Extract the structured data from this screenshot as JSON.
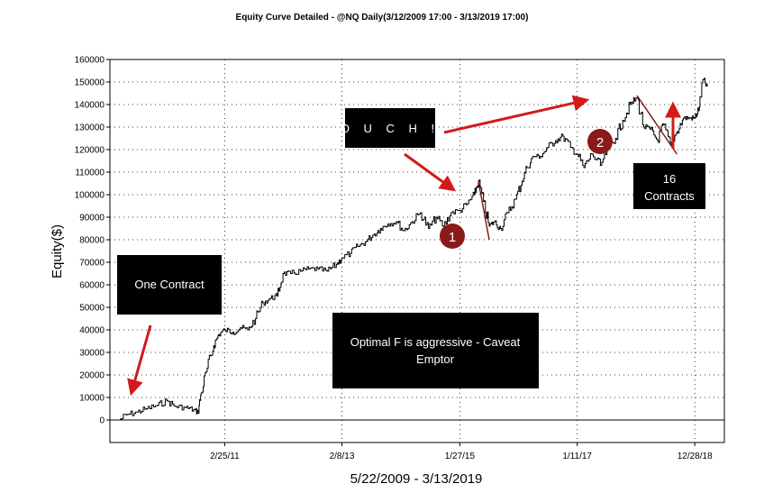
{
  "colors": {
    "background": "#ffffff",
    "equity_line": "#000000",
    "grid": "#000000",
    "arrow": "#d21a1a",
    "annotation_box": "#000000",
    "annotation_text": "#ffffff",
    "badge": "#8c1a1a",
    "drawdown_line": "#7a1010"
  },
  "chart_data": {
    "type": "line",
    "title": "Equity Curve Detailed - @NQ Daily(3/12/2009 17:00 - 3/13/2019 17:00)",
    "xlabel": "5/22/2009 - 3/13/2019",
    "ylabel": "Equity($)",
    "ylim": [
      -10000,
      160000
    ],
    "xlim": [
      "2009-05-22",
      "2019-03-13"
    ],
    "grid": true,
    "y_ticks": [
      "0",
      "10000",
      "20000",
      "30000",
      "40000",
      "50000",
      "60000",
      "70000",
      "80000",
      "90000",
      "100000",
      "110000",
      "120000",
      "130000",
      "140000",
      "150000",
      "160000"
    ],
    "x_ticks": [
      {
        "label": "2/25/11",
        "date": "2011-02-25"
      },
      {
        "label": "2/8/13",
        "date": "2013-02-08"
      },
      {
        "label": "1/27/15",
        "date": "2015-01-27"
      },
      {
        "label": "1/11/17",
        "date": "2017-01-11"
      },
      {
        "label": "12/28/18",
        "date": "2018-12-28"
      }
    ],
    "series": [
      {
        "points": [
          [
            "2009-05-22",
            0
          ],
          [
            "2009-07-15",
            2500
          ],
          [
            "2009-09-10",
            3500
          ],
          [
            "2009-11-05",
            5000
          ],
          [
            "2010-01-10",
            6500
          ],
          [
            "2010-03-10",
            8500
          ],
          [
            "2010-05-01",
            6000
          ],
          [
            "2010-07-01",
            5500
          ],
          [
            "2010-08-20",
            4500
          ],
          [
            "2010-09-15",
            3500
          ],
          [
            "2010-10-05",
            12000
          ],
          [
            "2010-11-10",
            23000
          ],
          [
            "2010-12-20",
            33000
          ],
          [
            "2011-01-20",
            38000
          ],
          [
            "2011-02-25",
            40000
          ],
          [
            "2011-04-15",
            39000
          ],
          [
            "2011-06-01",
            41000
          ],
          [
            "2011-07-15",
            40000
          ],
          [
            "2011-09-01",
            45000
          ],
          [
            "2011-10-15",
            52000
          ],
          [
            "2011-12-01",
            54000
          ],
          [
            "2012-01-10",
            55000
          ],
          [
            "2012-02-15",
            65000
          ],
          [
            "2012-04-01",
            65000
          ],
          [
            "2012-06-01",
            66000
          ],
          [
            "2012-07-20",
            67000
          ],
          [
            "2012-09-15",
            67000
          ],
          [
            "2012-11-10",
            66000
          ],
          [
            "2013-01-05",
            69000
          ],
          [
            "2013-02-08",
            72000
          ],
          [
            "2013-04-01",
            74000
          ],
          [
            "2013-05-15",
            77000
          ],
          [
            "2013-07-01",
            79000
          ],
          [
            "2013-08-15",
            82000
          ],
          [
            "2013-10-01",
            85000
          ],
          [
            "2013-11-15",
            87000
          ],
          [
            "2014-01-05",
            88000
          ],
          [
            "2014-02-20",
            84000
          ],
          [
            "2014-04-10",
            88000
          ],
          [
            "2014-06-01",
            92000
          ],
          [
            "2014-07-20",
            85000
          ],
          [
            "2014-09-05",
            90000
          ],
          [
            "2014-10-20",
            86000
          ],
          [
            "2014-12-05",
            92000
          ],
          [
            "2015-01-27",
            93000
          ],
          [
            "2015-03-15",
            96000
          ],
          [
            "2015-04-25",
            100000
          ],
          [
            "2015-05-20",
            106000
          ],
          [
            "2015-06-20",
            97000
          ],
          [
            "2015-07-25",
            86000
          ],
          [
            "2015-08-25",
            88000
          ],
          [
            "2015-10-01",
            85000
          ],
          [
            "2015-11-15",
            92000
          ],
          [
            "2016-01-01",
            98000
          ],
          [
            "2016-02-10",
            106000
          ],
          [
            "2016-03-10",
            112000
          ],
          [
            "2016-04-20",
            117000
          ],
          [
            "2016-06-01",
            117000
          ],
          [
            "2016-07-15",
            121000
          ],
          [
            "2016-09-01",
            124000
          ],
          [
            "2016-10-15",
            126000
          ],
          [
            "2016-12-01",
            121000
          ],
          [
            "2017-01-11",
            118000
          ],
          [
            "2017-02-20",
            112000
          ],
          [
            "2017-04-10",
            118000
          ],
          [
            "2017-06-01",
            113000
          ],
          [
            "2017-07-20",
            121000
          ],
          [
            "2017-09-01",
            125000
          ],
          [
            "2017-10-15",
            133000
          ],
          [
            "2017-11-30",
            140000
          ],
          [
            "2018-01-10",
            143000
          ],
          [
            "2018-02-20",
            130000
          ],
          [
            "2018-04-01",
            129000
          ],
          [
            "2018-05-15",
            124000
          ],
          [
            "2018-06-20",
            131000
          ],
          [
            "2018-08-01",
            122000
          ],
          [
            "2018-09-10",
            128000
          ],
          [
            "2018-10-20",
            134000
          ],
          [
            "2018-12-01",
            134000
          ],
          [
            "2018-12-28",
            134000
          ],
          [
            "2019-01-25",
            139000
          ],
          [
            "2019-02-15",
            151000
          ],
          [
            "2019-03-13",
            148000
          ]
        ]
      }
    ],
    "drawdowns": [
      {
        "start": [
          "2015-05-20",
          106000
        ],
        "end": [
          "2015-07-25",
          80000
        ]
      },
      {
        "start": [
          "2018-01-10",
          144000
        ],
        "end": [
          "2018-09-10",
          118000
        ]
      }
    ]
  },
  "annotations": {
    "one_contract": "One Contract",
    "ouch": "O U C H !",
    "optimal_f_line1": "Optimal F is aggressive - Caveat",
    "optimal_f_line2": "Emptor",
    "contracts_line1": "16",
    "contracts_line2": "Contracts",
    "badge_1": "1",
    "badge_2": "2"
  }
}
